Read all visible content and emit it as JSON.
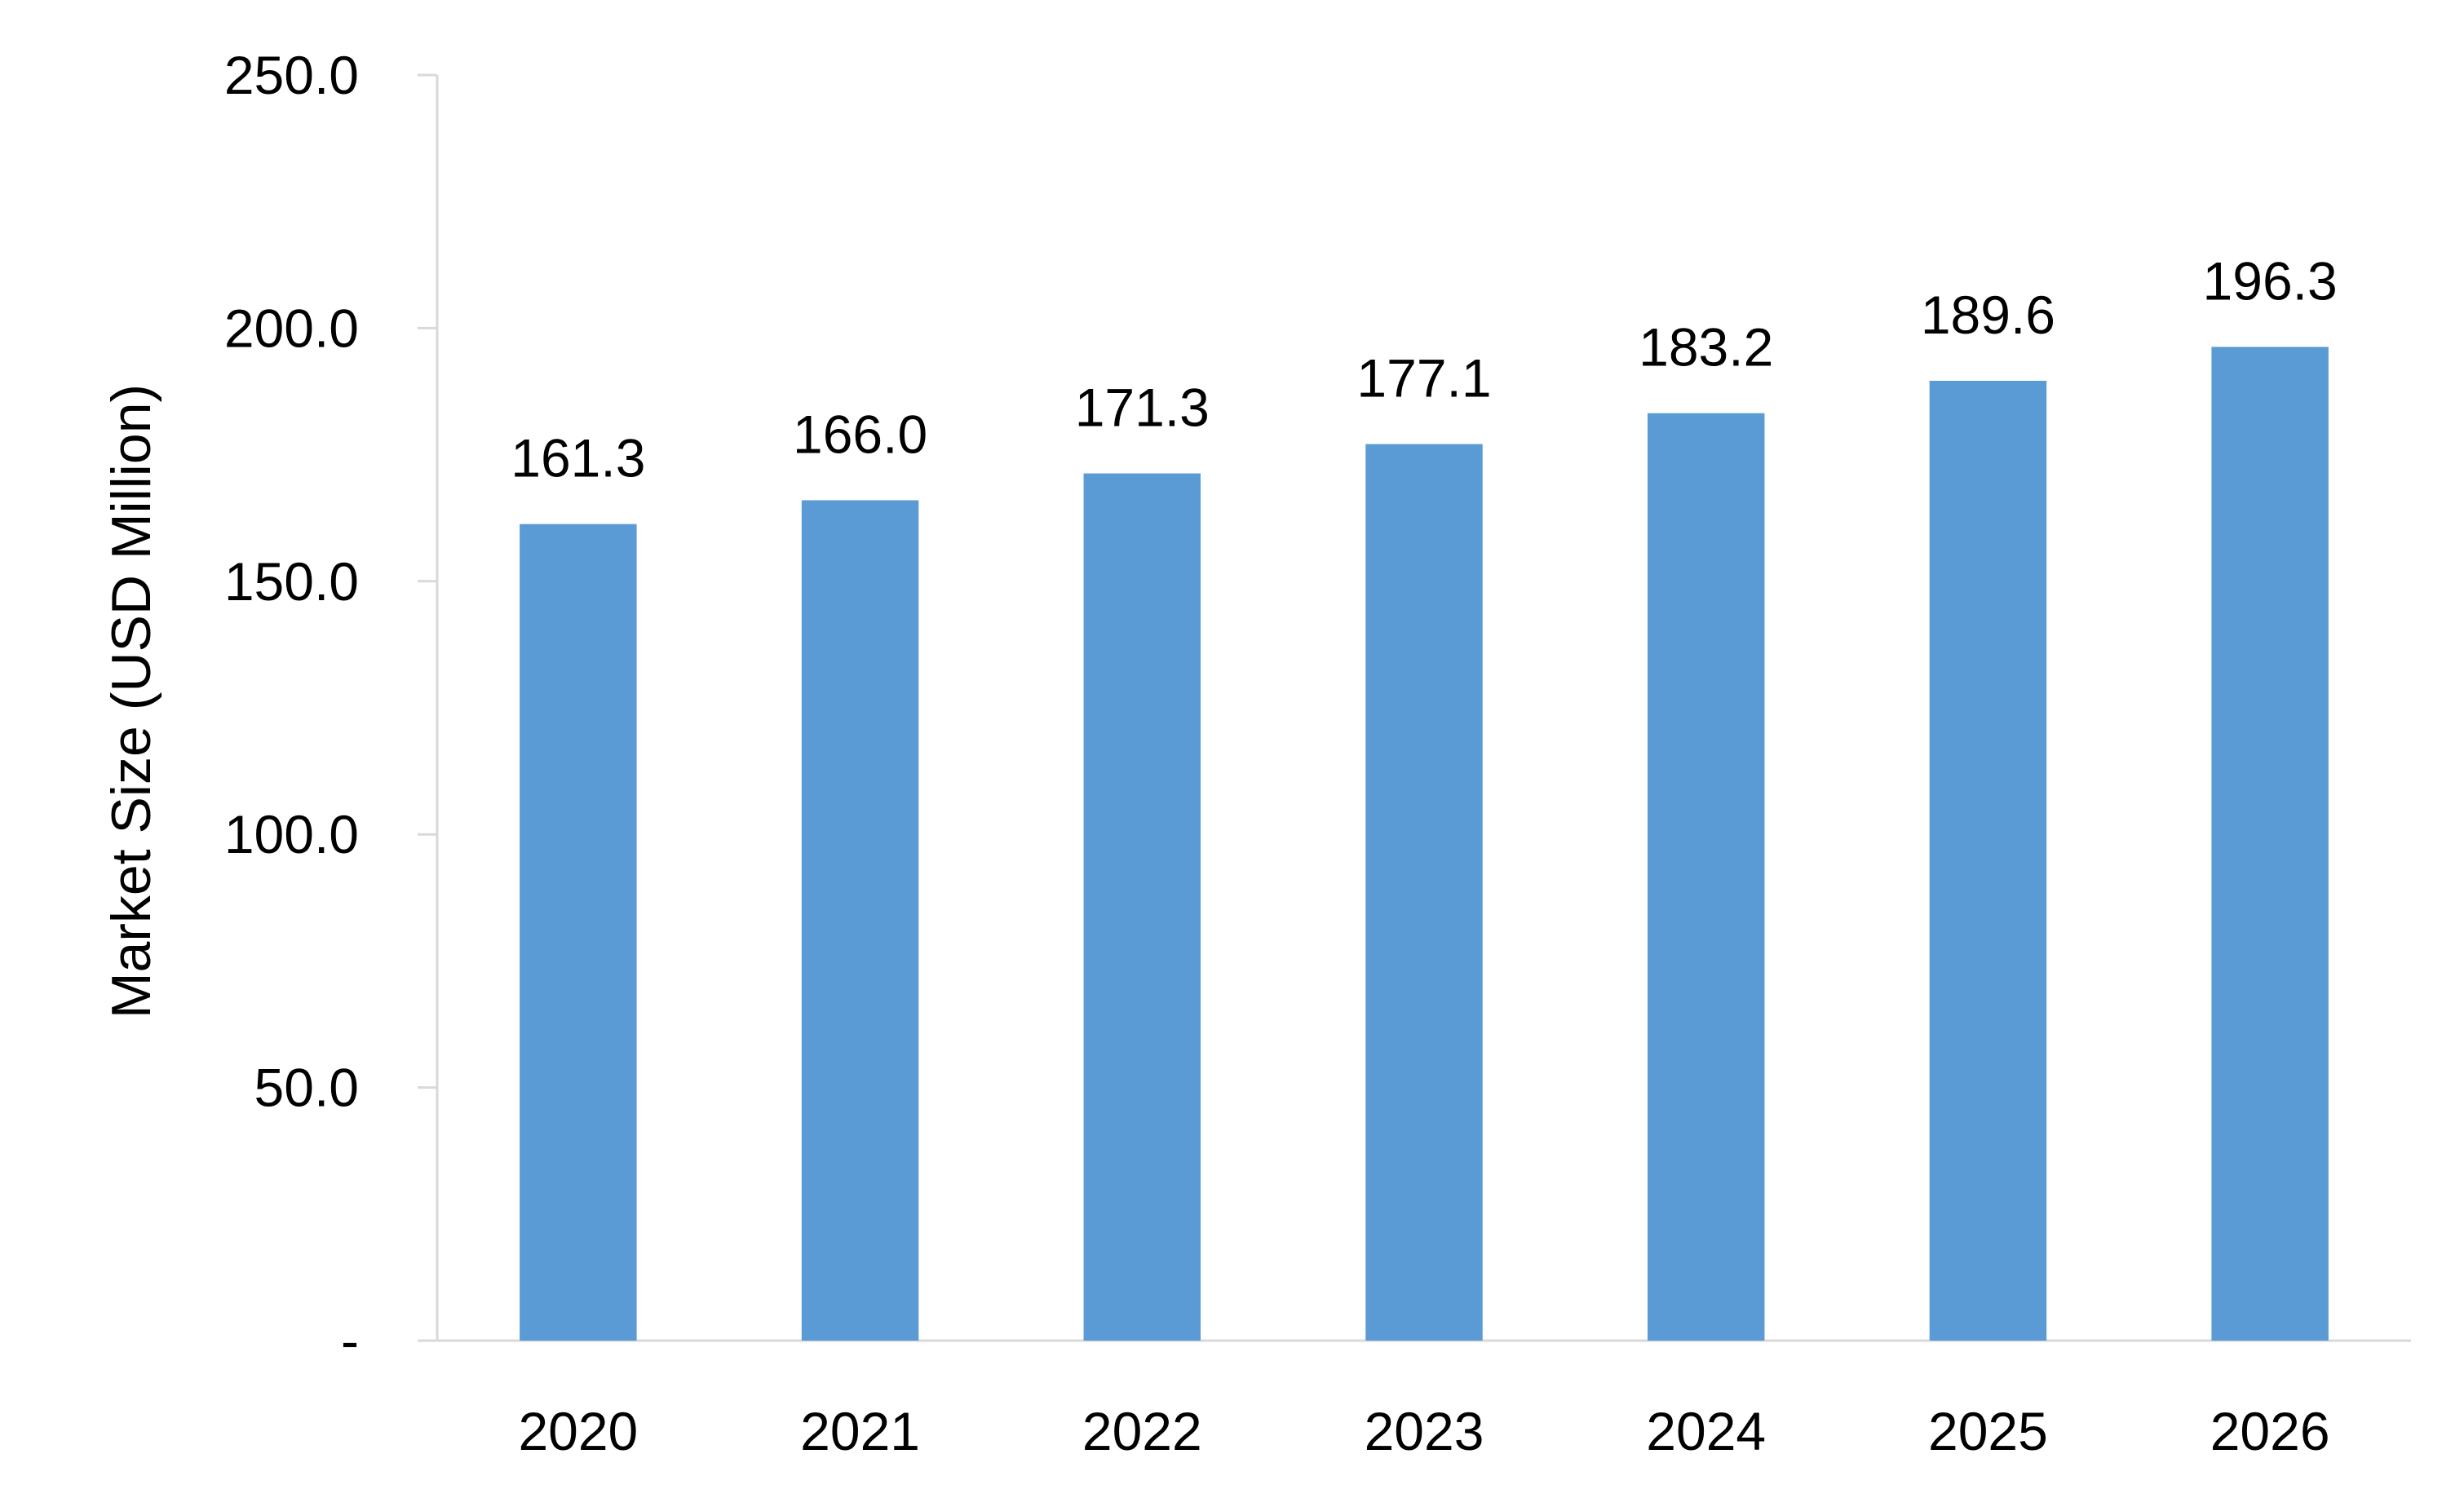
{
  "chart_data": {
    "type": "bar",
    "title": "",
    "xlabel": "",
    "ylabel": "Market Size (USD Million)",
    "categories": [
      "2020",
      "2021",
      "2022",
      "2023",
      "2024",
      "2025",
      "2026"
    ],
    "values": [
      161.3,
      166.0,
      171.3,
      177.1,
      183.2,
      189.6,
      196.3
    ],
    "data_labels": [
      "161.3",
      "166.0",
      "171.3",
      "177.1",
      "183.2",
      "189.6",
      "196.3"
    ],
    "ylim": [
      0,
      250
    ],
    "yticks": [
      0,
      50,
      100,
      150,
      200,
      250
    ],
    "ytick_labels": [
      "-",
      "50.0",
      "100.0",
      "150.0",
      "200.0",
      "250.0"
    ],
    "grid": false,
    "legend": "none",
    "colors": {
      "bar": "#5b9bd5",
      "axis": "#d9d9d9",
      "text": "#000000"
    }
  }
}
